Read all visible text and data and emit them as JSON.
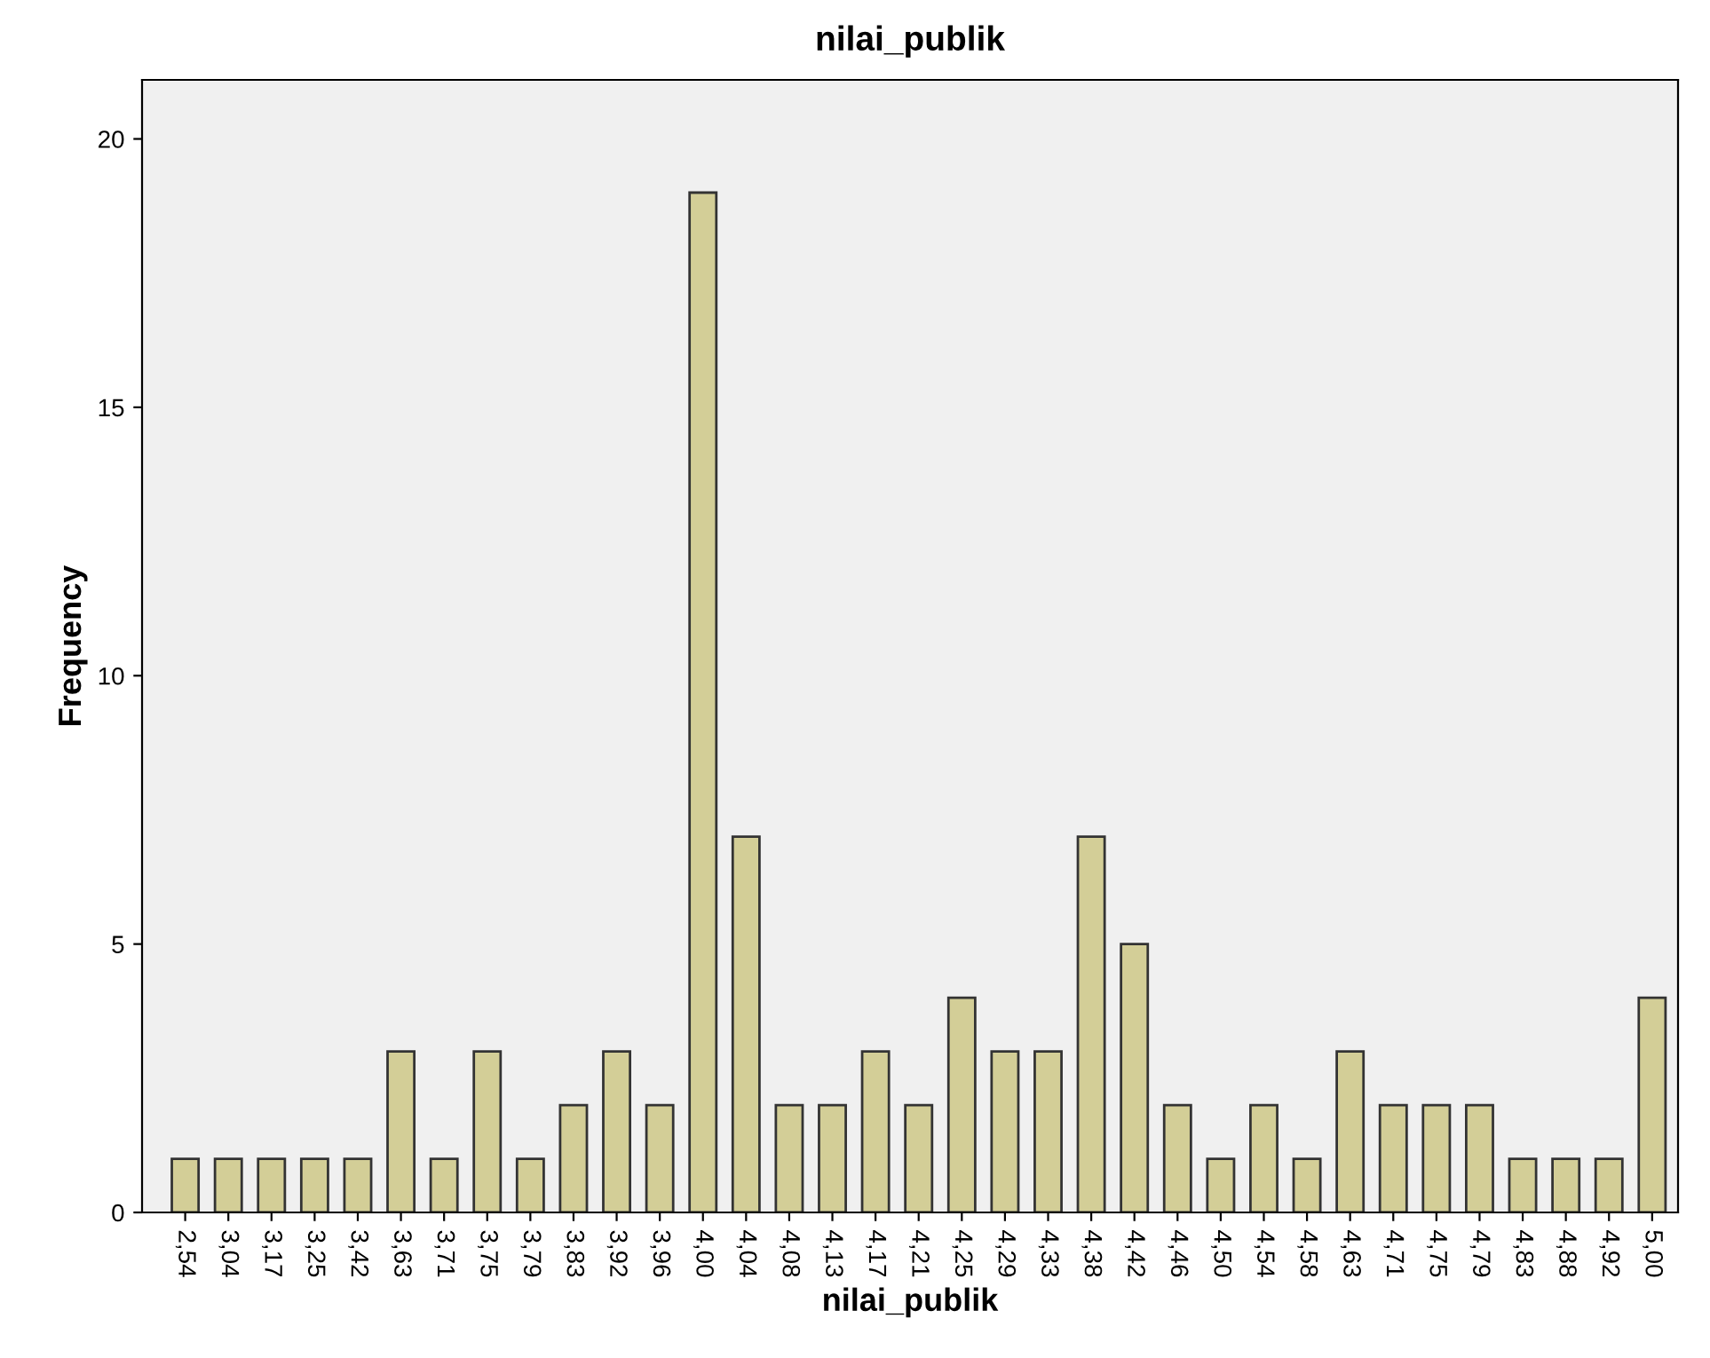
{
  "chart_data": {
    "type": "bar",
    "title": "nilai_publik",
    "xlabel": "nilai_publik",
    "ylabel": "Frequency",
    "categories": [
      "2,54",
      "3,04",
      "3,17",
      "3,25",
      "3,42",
      "3,63",
      "3,71",
      "3,75",
      "3,79",
      "3,83",
      "3,92",
      "3,96",
      "4,00",
      "4,04",
      "4,08",
      "4,13",
      "4,17",
      "4,21",
      "4,25",
      "4,29",
      "4,33",
      "4,38",
      "4,42",
      "4,46",
      "4,50",
      "4,54",
      "4,58",
      "4,63",
      "4,71",
      "4,75",
      "4,79",
      "4,83",
      "4,88",
      "4,92",
      "5,00"
    ],
    "values": [
      1,
      1,
      1,
      1,
      1,
      3,
      1,
      3,
      1,
      2,
      3,
      2,
      19,
      7,
      2,
      2,
      3,
      2,
      4,
      3,
      3,
      7,
      5,
      2,
      1,
      2,
      1,
      3,
      2,
      2,
      2,
      1,
      1,
      1,
      4
    ],
    "color": "#d3ce97",
    "ylim": [
      0,
      21.1
    ],
    "yticks": [
      0,
      5,
      10,
      15,
      20
    ],
    "grid": false,
    "legend": false
  }
}
